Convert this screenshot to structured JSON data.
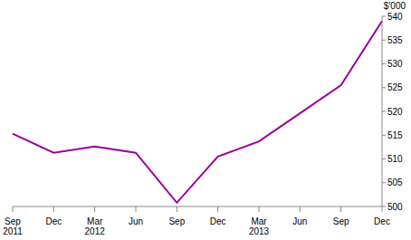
{
  "chart_data": {
    "type": "line",
    "y_label": "$'000",
    "categories": [
      "Sep 2011",
      "Dec",
      "Mar 2012",
      "Jun",
      "Sep",
      "Dec",
      "Mar 2013",
      "Jun",
      "Sep",
      "Dec"
    ],
    "values": [
      515.3,
      511.3,
      512.6,
      511.3,
      500.8,
      510.5,
      513.7,
      519.6,
      525.5,
      539.0
    ],
    "color": "#990099",
    "ylim": [
      500,
      540
    ],
    "yticks": [
      500,
      505,
      510,
      515,
      520,
      525,
      530,
      535,
      540
    ],
    "grid": false
  }
}
